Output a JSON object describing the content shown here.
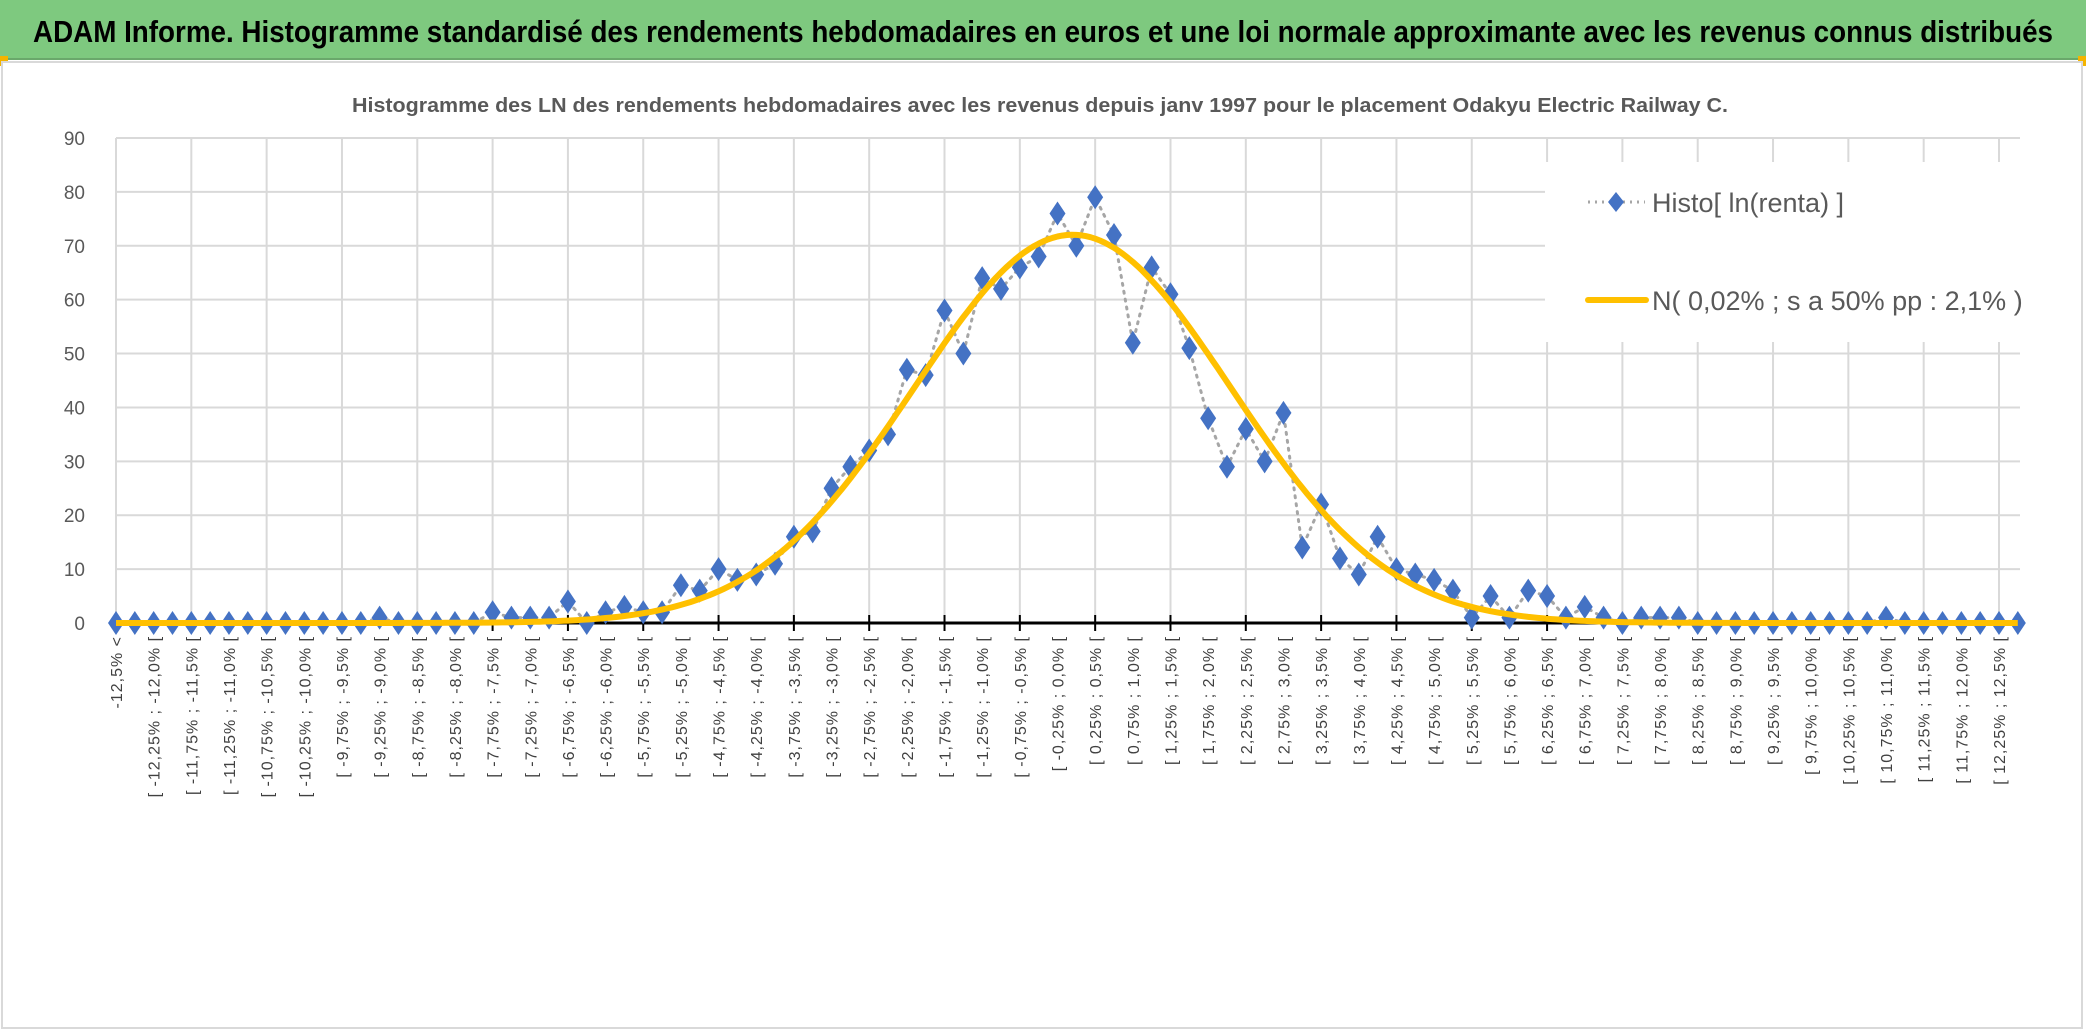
{
  "header": {
    "title": "ADAM Informe. Histogramme standardisé des rendements hebdomadaires en euros et une loi normale approximante avec les revenus connus distribués"
  },
  "chart_data": {
    "type": "line",
    "title": "Histogramme des LN des rendements hebdomadaires avec les revenus depuis janv 1997 pour le placement Odakyu Electric Railway C.",
    "xlabel": "",
    "ylabel": "",
    "ylim": [
      0,
      90
    ],
    "yticks": [
      "0",
      "10",
      "20",
      "30",
      "40",
      "50",
      "60",
      "70",
      "80",
      "90"
    ],
    "grid": true,
    "legend_position": "top-right",
    "tick_labels": [
      "-12,5% <",
      "[ -12,25% ; -12,0% [",
      "[ -11,75% ; -11,5% [",
      "[ -11,25% ; -11,0% [",
      "[ -10,75% ; -10,5% [",
      "[ -10,25% ; -10,0% [",
      "[ -9,75% ; -9,5% [",
      "[ -9,25% ; -9,0% [",
      "[ -8,75% ; -8,5% [",
      "[ -8,25% ; -8,0% [",
      "[ -7,75% ; -7,5% [",
      "[ -7,25% ; -7,0% [",
      "[ -6,75% ; -6,5% [",
      "[ -6,25% ; -6,0% [",
      "[ -5,75% ; -5,5% [",
      "[ -5,25% ; -5,0% [",
      "[ -4,75% ; -4,5% [",
      "[ -4,25% ; -4,0% [",
      "[ -3,75% ; -3,5% [",
      "[ -3,25% ; -3,0% [",
      "[ -2,75% ; -2,5% [",
      "[ -2,25% ; -2,0% [",
      "[ -1,75% ; -1,5% [",
      "[ -1,25% ; -1,0% [",
      "[ -0,75% ; -0,5% [",
      "[ -0,25% ; 0,0% [",
      "[ 0,25% ; 0,5% [",
      "[ 0,75% ; 1,0% [",
      "[ 1,25% ; 1,5% [",
      "[ 1,75% ; 2,0% [",
      "[ 2,25% ; 2,5% [",
      "[ 2,75% ; 3,0% [",
      "[ 3,25% ; 3,5% [",
      "[ 3,75% ; 4,0% [",
      "[ 4,25% ; 4,5% [",
      "[ 4,75% ; 5,0% [",
      "[ 5,25% ; 5,5% [",
      "[ 5,75% ; 6,0% [",
      "[ 6,25% ; 6,5% [",
      "[ 6,75% ; 7,0% [",
      "[ 7,25% ; 7,5% [",
      "[ 7,75% ; 8,0% [",
      "[ 8,25% ; 8,5% [",
      "[ 8,75% ; 9,0% [",
      "[ 9,25% ; 9,5% [",
      "[ 9,75% ; 10,0% [",
      "[ 10,25% ; 10,5% [",
      "[ 10,75% ; 11,0% [",
      "[ 11,25% ; 11,5% [",
      "[ 11,75% ; 12,0% [",
      "[ 12,25% ; 12,5% ["
    ],
    "series": [
      {
        "name": "Histo[ ln(renta) ]",
        "type": "scatter-dotted-line",
        "color": "#4472c4",
        "values": [
          0,
          0,
          0,
          0,
          0,
          0,
          0,
          0,
          0,
          0,
          0,
          0,
          0,
          0,
          1,
          0,
          0,
          0,
          0,
          0,
          2,
          1,
          1,
          1,
          4,
          0,
          2,
          3,
          2,
          2,
          7,
          6,
          10,
          8,
          9,
          11,
          16,
          17,
          25,
          29,
          32,
          35,
          47,
          46,
          58,
          50,
          64,
          62,
          66,
          68,
          76,
          70,
          79,
          72,
          52,
          66,
          61,
          51,
          38,
          29,
          36,
          30,
          39,
          14,
          22,
          12,
          9,
          16,
          10,
          9,
          8,
          6,
          1,
          5,
          1,
          6,
          5,
          1,
          3,
          1,
          0,
          1,
          1,
          1,
          0,
          0,
          0,
          0,
          0,
          0,
          0,
          0,
          0,
          0,
          1,
          0,
          0,
          0,
          0,
          0,
          0,
          0
        ]
      },
      {
        "name": "N( 0,02% ; s a 50% pp : 2,1% )",
        "type": "line",
        "color": "#ffc000",
        "mean_pct": 0.02,
        "sd_pct": 2.1
      }
    ]
  }
}
